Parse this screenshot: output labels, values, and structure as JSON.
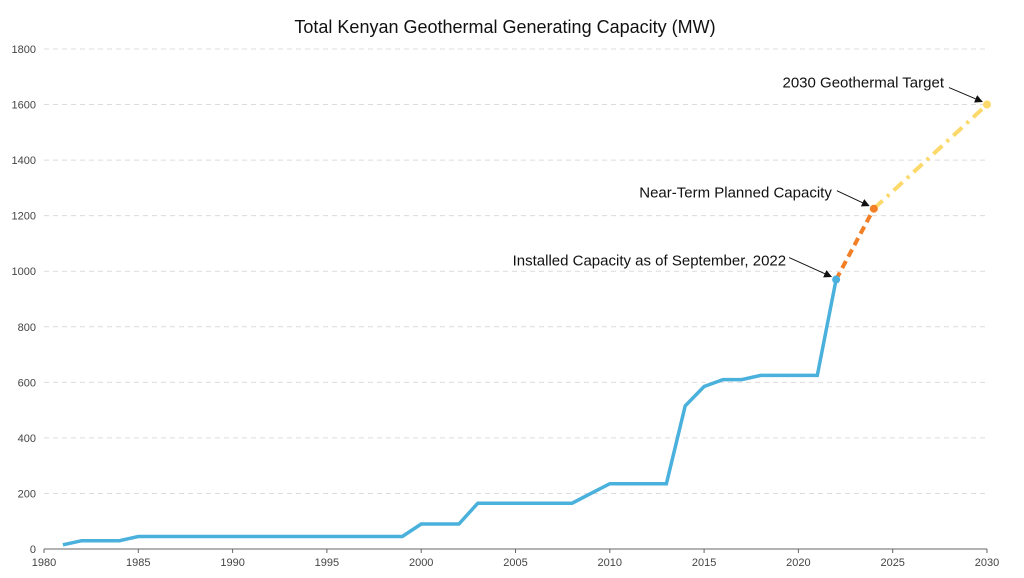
{
  "chart_data": {
    "type": "line",
    "title": "Total Kenyan Geothermal Generating Capacity (MW)",
    "xlabel": "",
    "ylabel": "",
    "xlim": [
      1980,
      2030
    ],
    "ylim": [
      0,
      1800
    ],
    "x_ticks": [
      1980,
      1985,
      1990,
      1995,
      2000,
      2005,
      2010,
      2015,
      2020,
      2025,
      2030
    ],
    "y_ticks": [
      0,
      200,
      400,
      600,
      800,
      1000,
      1200,
      1400,
      1600,
      1800
    ],
    "grid": true,
    "colors": {
      "installed": "#4ab0dc",
      "planned": "#f27f26",
      "target": "#fcd96a",
      "text": "#111111"
    },
    "series": [
      {
        "key": "installed",
        "style": "solid",
        "x": [
          1981,
          1982,
          1983,
          1984,
          1985,
          1986,
          1987,
          1988,
          1989,
          1990,
          1991,
          1992,
          1993,
          1994,
          1995,
          1996,
          1997,
          1998,
          1999,
          2000,
          2001,
          2002,
          2003,
          2004,
          2005,
          2006,
          2007,
          2008,
          2009,
          2010,
          2011,
          2012,
          2013,
          2014,
          2015,
          2016,
          2017,
          2018,
          2019,
          2020,
          2021,
          2022
        ],
        "y": [
          15,
          30,
          30,
          30,
          45,
          45,
          45,
          45,
          45,
          45,
          45,
          45,
          45,
          45,
          45,
          45,
          45,
          45,
          45,
          90,
          90,
          90,
          165,
          165,
          165,
          165,
          165,
          165,
          200,
          235,
          235,
          235,
          235,
          515,
          585,
          610,
          610,
          625,
          625,
          625,
          625,
          970
        ]
      },
      {
        "key": "planned",
        "style": "dashed",
        "x": [
          2022,
          2024
        ],
        "y": [
          970,
          1225
        ]
      },
      {
        "key": "target",
        "style": "dashdot",
        "x": [
          2024,
          2030
        ],
        "y": [
          1225,
          1600
        ]
      }
    ],
    "annotations": [
      {
        "text": "Installed Capacity as of September, 2022",
        "x": 2022,
        "y": 970,
        "series": "installed"
      },
      {
        "text": "Near-Term Planned Capacity",
        "x": 2024,
        "y": 1225,
        "series": "planned"
      },
      {
        "text": "2030 Geothermal Target",
        "x": 2030,
        "y": 1600,
        "series": "target"
      }
    ]
  }
}
